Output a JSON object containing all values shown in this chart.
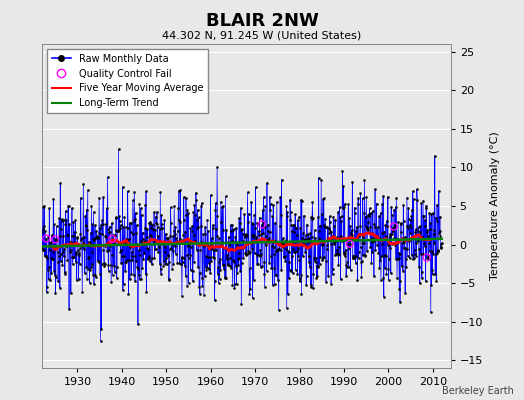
{
  "title": "BLAIR 2NW",
  "subtitle": "44.302 N, 91.245 W (United States)",
  "ylabel": "Temperature Anomaly (°C)",
  "xlabel_credit": "Berkeley Earth",
  "xlim": [
    1922,
    2014
  ],
  "ylim": [
    -16,
    26
  ],
  "yticks": [
    -15,
    -10,
    -5,
    0,
    5,
    10,
    15,
    20,
    25
  ],
  "xticks": [
    1930,
    1940,
    1950,
    1960,
    1970,
    1980,
    1990,
    2000,
    2010
  ],
  "bg_color": "#e8e8e8",
  "grid_color": "#ffffff",
  "raw_line_color": "blue",
  "raw_marker_color": "black",
  "qc_fail_color": "magenta",
  "moving_avg_color": "red",
  "trend_color": "green",
  "seed": 42,
  "start_year": 1922,
  "end_year": 2012,
  "trend_slope": 0.0003
}
